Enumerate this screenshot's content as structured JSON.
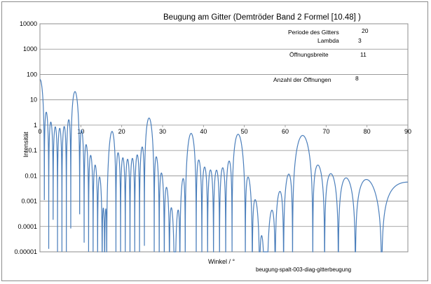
{
  "chart_data": {
    "type": "line",
    "title": "Beugung am Gitter (Demtröder Band 2 Formel [10.48] )",
    "xlabel": "Winkel / °",
    "ylabel": "Intensität",
    "xlim": [
      0,
      90
    ],
    "ylim": [
      1e-05,
      10000
    ],
    "y_scale": "log",
    "x_ticks": [
      0,
      10,
      20,
      30,
      40,
      50,
      60,
      70,
      80,
      90
    ],
    "x_tick_labels": [
      "0",
      "10",
      "20",
      "30",
      "40",
      "50",
      "60",
      "70",
      "80",
      "90"
    ],
    "y_ticks": [
      1e-05,
      0.0001,
      0.001,
      0.01,
      0.1,
      1,
      10,
      100,
      1000,
      10000
    ],
    "y_tick_labels": [
      "0.00001",
      "0.0001",
      "0.001",
      "0.01",
      "0.1",
      "1",
      "10",
      "100",
      "1000",
      "10000"
    ],
    "grid": "horizontal",
    "line_color": "#4a7ebb",
    "parameters": [
      {
        "label": "Periode des Gitters",
        "value": "20"
      },
      {
        "label": "Lambda",
        "value": "3"
      },
      {
        "label": "Öffnungsbreite",
        "value": "11"
      },
      {
        "label": "Anzahl der Öffnungen",
        "value": "8"
      }
    ],
    "series": [
      {
        "grating_period": 20,
        "wavelength": 3,
        "slit_width": 11,
        "slit_count": 8,
        "max_intensity": 64
      }
    ]
  },
  "caption": "beugung-spalt-003-diag-gitterbeugung"
}
